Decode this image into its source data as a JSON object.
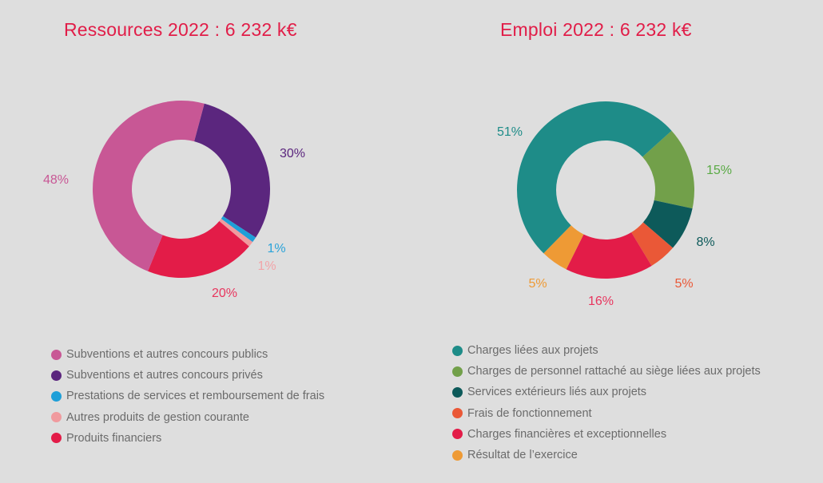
{
  "chart_data": [
    {
      "type": "pie",
      "variant": "donut",
      "title": "Ressources 2022 : 6 232 k€",
      "start_angle_deg": 15,
      "slices": [
        {
          "label": "Subventions et autres concours privés",
          "value": 30,
          "display": "30%",
          "color": "#5b267e"
        },
        {
          "label": "Prestations de services et remboursement de frais",
          "value": 1,
          "display": "1%",
          "color": "#1e9fd8"
        },
        {
          "label": "Autres produits de gestion courante",
          "value": 1,
          "display": "1%",
          "color": "#f09a9e"
        },
        {
          "label": "Produits financiers",
          "value": 20,
          "display": "20%",
          "color": "#e31c48"
        },
        {
          "label": "Subventions et autres concours publics",
          "value": 48,
          "display": "48%",
          "color": "#c85795"
        }
      ],
      "legend": [
        {
          "label": "Subventions et autres concours publics",
          "color": "#c85795"
        },
        {
          "label": "Subventions et autres concours privés",
          "color": "#5b267e"
        },
        {
          "label": "Prestations de services et remboursement de frais",
          "color": "#1e9fd8"
        },
        {
          "label": "Autres produits de gestion courante",
          "color": "#f09a9e"
        },
        {
          "label": "Produits financiers",
          "color": "#e31c48"
        }
      ],
      "legend_position": "bottom"
    },
    {
      "type": "pie",
      "variant": "donut",
      "title": "Emploi 2022 : 6 232 k€",
      "start_angle_deg": 48,
      "slices": [
        {
          "label": "Charges de personnel rattaché au siège liées aux projets",
          "value": 15,
          "display": "15%",
          "color": "#72a04a"
        },
        {
          "label": "Services extérieurs liés aux projets",
          "value": 8,
          "display": "8%",
          "color": "#0d5a5a"
        },
        {
          "label": "Frais de fonctionnement",
          "value": 5,
          "display": "5%",
          "color": "#ea5837"
        },
        {
          "label": "Charges financières et exceptionnelles",
          "value": 16,
          "display": "16%",
          "color": "#e31c48"
        },
        {
          "label": "Résultat de l'exercice",
          "value": 5,
          "display": "5%",
          "color": "#ee9a35"
        },
        {
          "label": "Charges liées aux projets",
          "value": 51,
          "display": "51%",
          "color": "#1e8c88"
        }
      ],
      "legend": [
        {
          "label": "Charges liées aux projets",
          "color": "#1e8c88"
        },
        {
          "label": "Charges de personnel rattaché au siège liées aux projets",
          "color": "#72a04a"
        },
        {
          "label": "Services extérieurs liés aux projets",
          "color": "#0d5a5a"
        },
        {
          "label": "Frais de fonctionnement",
          "color": "#ea5837"
        },
        {
          "label": "Charges financières et exceptionnelles",
          "color": "#e31c48"
        },
        {
          "label": "Résultat de l’exercice",
          "color": "#ee9a35"
        }
      ],
      "legend_position": "bottom"
    }
  ],
  "label_colors": {
    "left": [
      "#5b267e",
      "#2aa3d9",
      "#f2a4a8",
      "#e8355e",
      "#c85795"
    ],
    "right": [
      "#5aaa45",
      "#0d5a5a",
      "#ea5837",
      "#e8355e",
      "#ee9a35",
      "#1e8c88"
    ]
  }
}
